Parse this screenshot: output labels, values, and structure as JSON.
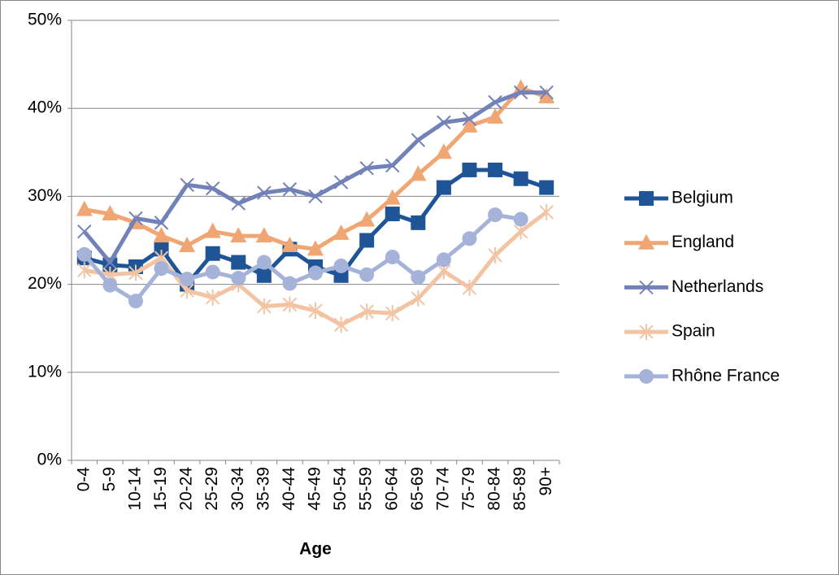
{
  "chart_data": {
    "type": "line",
    "x_label": "Age",
    "categories": [
      "0-4",
      "5-9",
      "10-14",
      "15-19",
      "20-24",
      "25-29",
      "30-34",
      "35-39",
      "40-44",
      "45-49",
      "50-54",
      "55-59",
      "60-64",
      "65-69",
      "70-74",
      "75-79",
      "80-84",
      "85-89",
      "90+"
    ],
    "ylim": [
      0,
      50
    ],
    "yticks": [
      {
        "value": 0,
        "label": "0%"
      },
      {
        "value": 10,
        "label": "10%"
      },
      {
        "value": 20,
        "label": "20%"
      },
      {
        "value": 30,
        "label": "30%"
      },
      {
        "value": 40,
        "label": "40%"
      },
      {
        "value": 50,
        "label": "50%"
      }
    ],
    "grid": true,
    "legend": "right",
    "series": [
      {
        "name": "Belgium",
        "color": "#1f5597",
        "marker": "square",
        "values": [
          23,
          22.2,
          22,
          24,
          20,
          23.5,
          22.5,
          21,
          24,
          22,
          21,
          25,
          28,
          27,
          31,
          33,
          33,
          32,
          31
        ]
      },
      {
        "name": "England",
        "color": "#f0a673",
        "marker": "triangle",
        "values": [
          28.5,
          28,
          27,
          25.5,
          24.4,
          26,
          25.5,
          25.5,
          24.4,
          24,
          25.8,
          27.3,
          29.8,
          32.5,
          35,
          38,
          39,
          42.3,
          41.3
        ]
      },
      {
        "name": "Netherlands",
        "color": "#7282b8",
        "marker": "x",
        "values": [
          26,
          22.5,
          27.5,
          27,
          31.3,
          30.9,
          29.2,
          30.4,
          30.8,
          30,
          31.6,
          33.2,
          33.5,
          36.4,
          38.4,
          38.8,
          40.7,
          41.8,
          41.8
        ]
      },
      {
        "name": "Spain",
        "color": "#f2c4a4",
        "marker": "star",
        "values": [
          21.6,
          21.1,
          21.3,
          23,
          19.3,
          18.5,
          20,
          17.5,
          17.7,
          17,
          15.4,
          16.9,
          16.7,
          18.4,
          21.5,
          19.6,
          23.3,
          26,
          28.2
        ]
      },
      {
        "name": "Rhône France",
        "color": "#a6b3d8",
        "marker": "circle",
        "values": [
          23.4,
          19.9,
          18.1,
          21.8,
          20.6,
          21.4,
          20.7,
          22.5,
          20.1,
          21.3,
          22.1,
          21.1,
          23.1,
          20.8,
          22.8,
          25.2,
          27.9,
          27.4,
          null
        ]
      }
    ]
  }
}
